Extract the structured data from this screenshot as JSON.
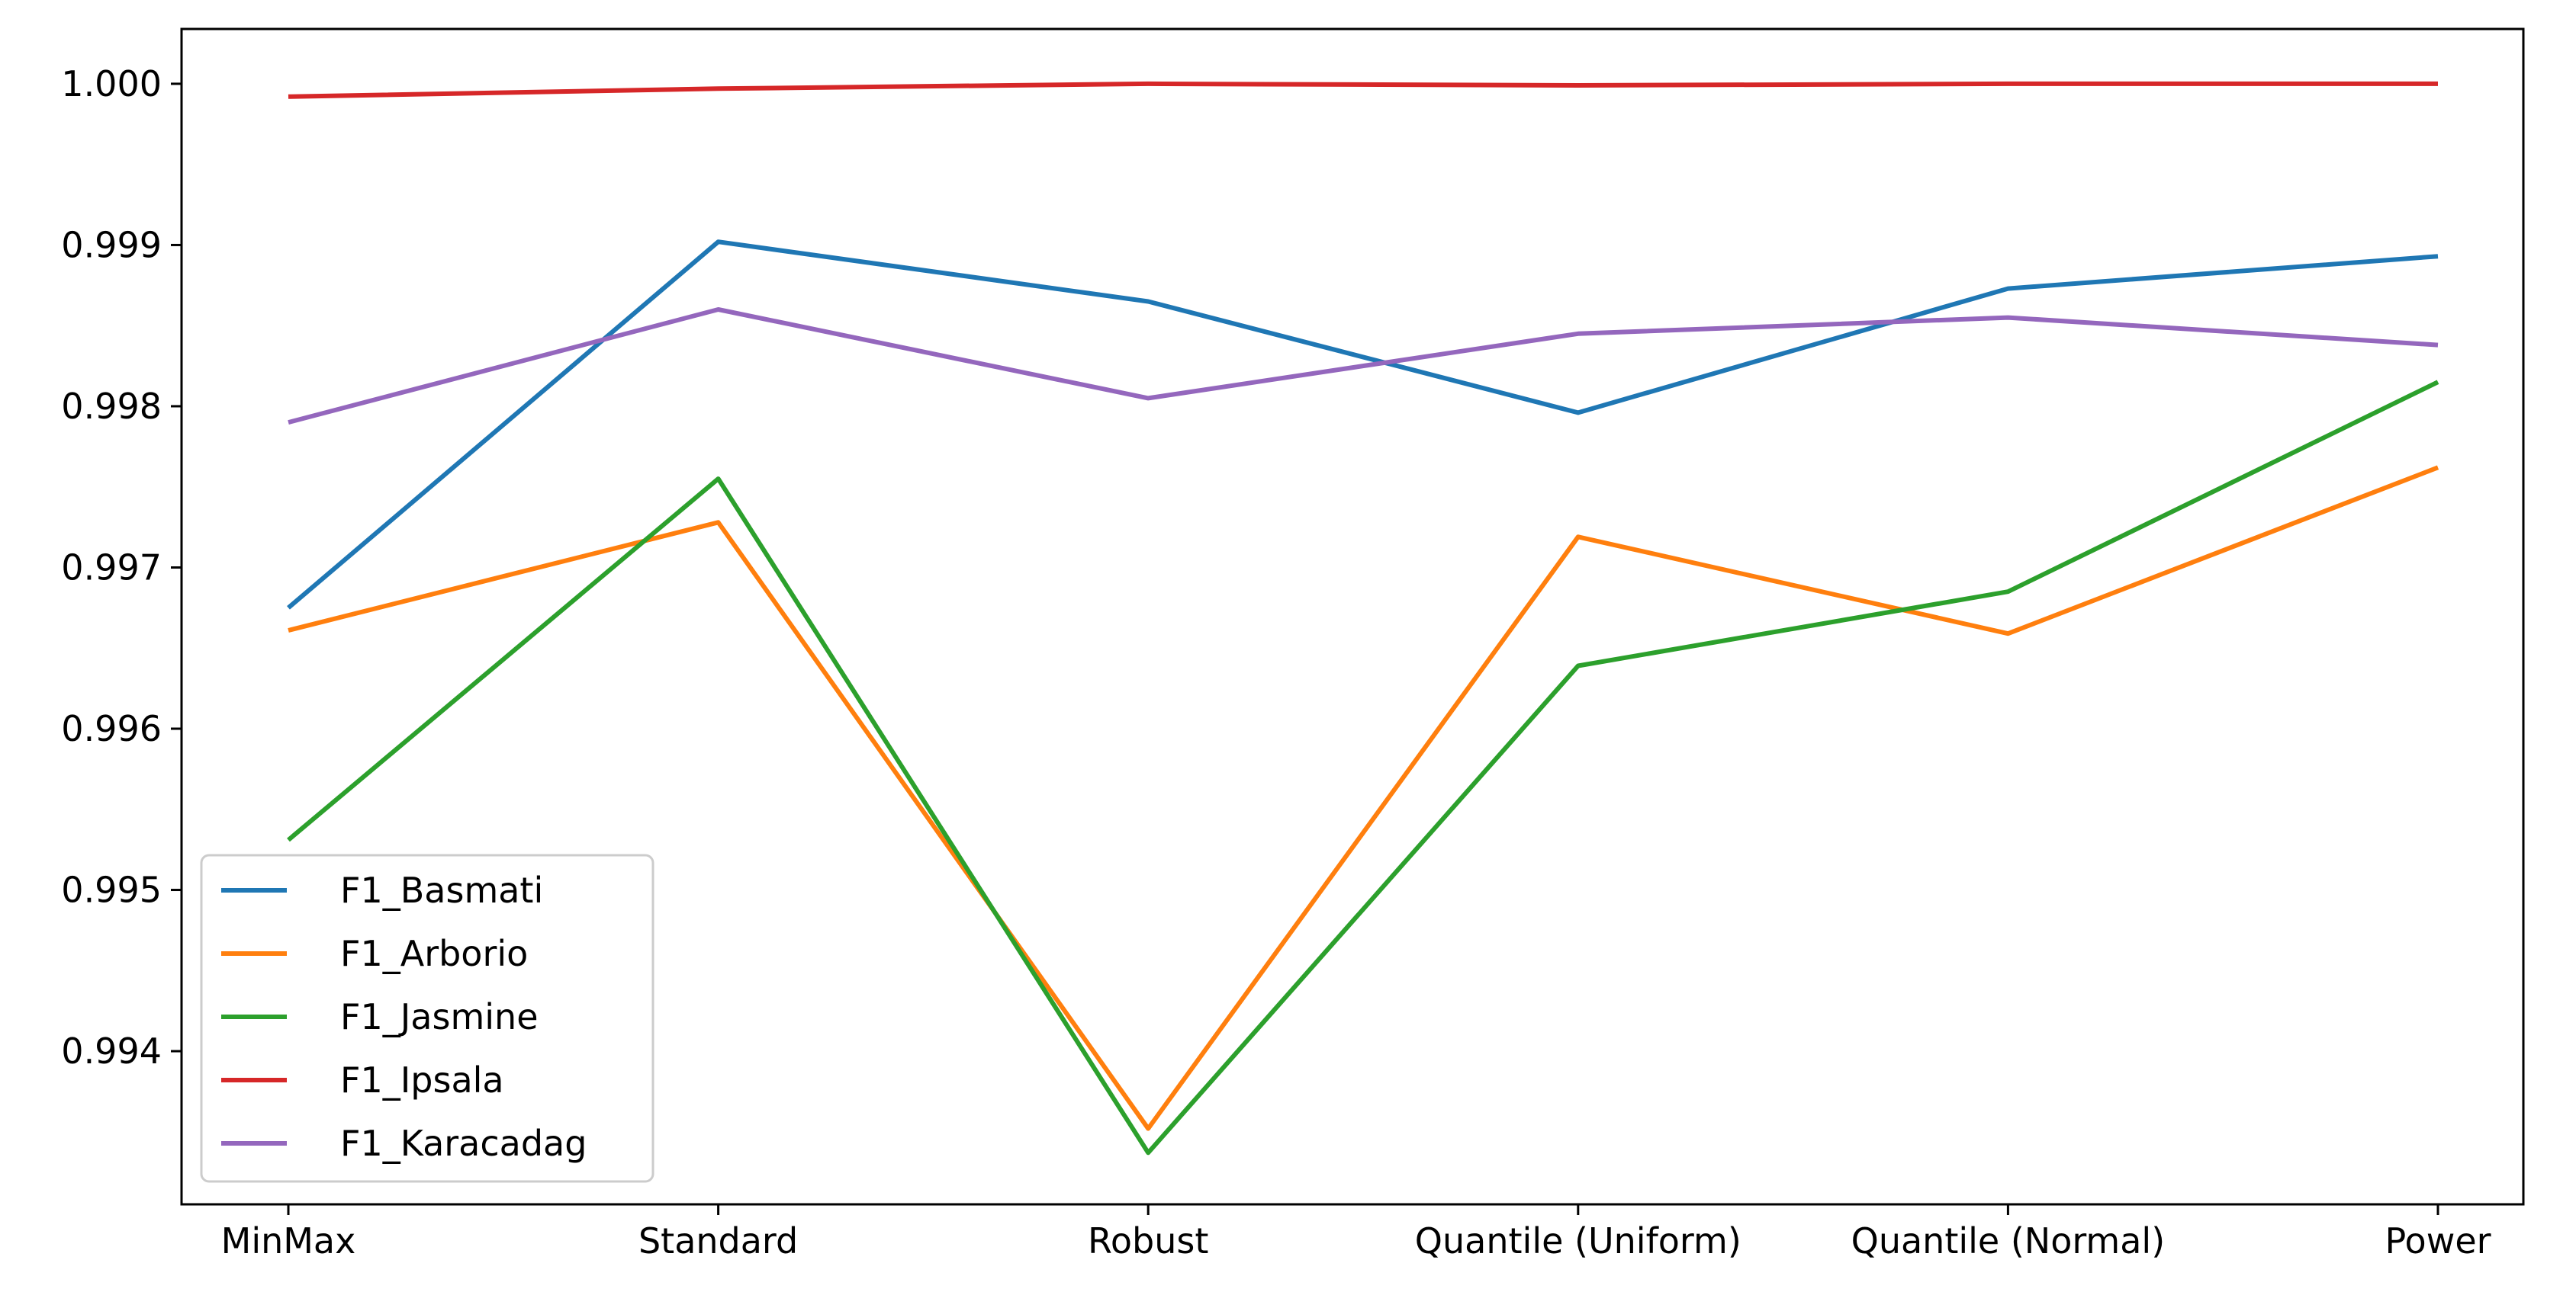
{
  "chart_data": {
    "type": "line",
    "title": "",
    "xlabel": "",
    "ylabel": "",
    "categories": [
      "MinMax",
      "Standard",
      "Robust",
      "Quantile (Uniform)",
      "Quantile (Normal)",
      "Power"
    ],
    "ylim": [
      0.99305,
      1.00034
    ],
    "yticks": [
      "0.994",
      "0.995",
      "0.996",
      "0.997",
      "0.998",
      "0.999",
      "1.000"
    ],
    "yticks_values": [
      0.994,
      0.995,
      0.996,
      0.997,
      0.998,
      0.999,
      1.0
    ],
    "grid": false,
    "legend_position": "lower-left",
    "series": [
      {
        "name": "F1_Basmati",
        "color": "#1f77b4",
        "values": [
          0.99675,
          0.99902,
          0.99865,
          0.99796,
          0.99873,
          0.99893
        ]
      },
      {
        "name": "F1_Arborio",
        "color": "#ff7f0e",
        "values": [
          0.99661,
          0.99728,
          0.99352,
          0.99719,
          0.99659,
          0.99762
        ]
      },
      {
        "name": "F1_Jasmine",
        "color": "#2ca02c",
        "values": [
          0.99531,
          0.99755,
          0.99337,
          0.99639,
          0.99685,
          0.99815
        ]
      },
      {
        "name": "F1_Ipsala",
        "color": "#d62728",
        "values": [
          0.99992,
          0.99997,
          1.0,
          0.99999,
          1.0,
          1.0
        ]
      },
      {
        "name": "F1_Karacadag",
        "color": "#9467bd",
        "values": [
          0.9979,
          0.9986,
          0.99805,
          0.99845,
          0.99855,
          0.99838
        ]
      }
    ]
  }
}
